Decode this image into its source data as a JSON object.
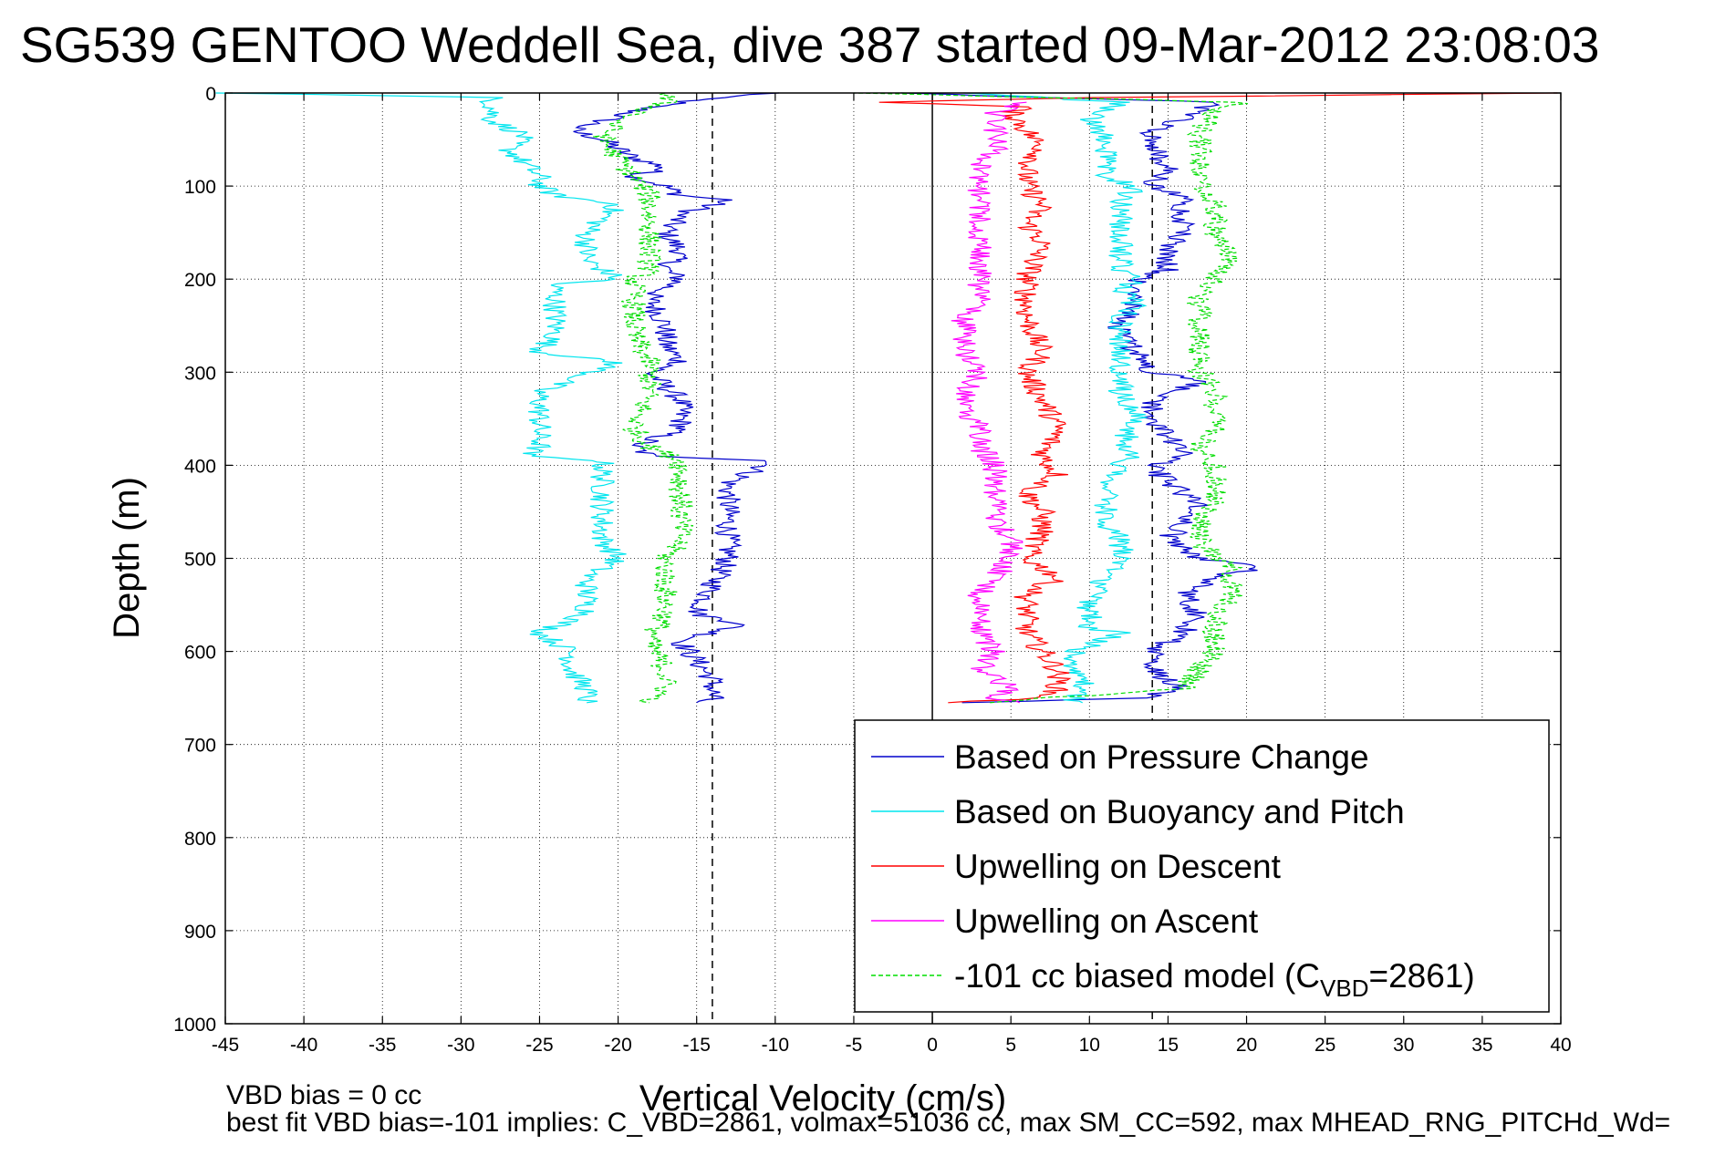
{
  "chart_data": {
    "type": "line",
    "title": "SG539 GENTOO Weddell Sea, dive 387 started 09-Mar-2012 23:08:03",
    "xlabel": "Vertical Velocity (cm/s)",
    "ylabel": "Depth (m)",
    "xlim": [
      -45,
      40
    ],
    "ylim": [
      0,
      1000
    ],
    "y_reversed": true,
    "grid": true,
    "x_ticks": [
      "-45",
      "-40",
      "-35",
      "-30",
      "-25",
      "-20",
      "-15",
      "-10",
      "-5",
      "0",
      "5",
      "10",
      "15",
      "20",
      "25",
      "30",
      "35",
      "40"
    ],
    "y_ticks": [
      "0",
      "100",
      "200",
      "300",
      "400",
      "500",
      "600",
      "700",
      "800",
      "900",
      "1000"
    ],
    "reference_lines": [
      {
        "x": 0,
        "style": "solid",
        "color": "#000000"
      },
      {
        "x": -14,
        "style": "dashed",
        "color": "#000000"
      },
      {
        "x": 14,
        "style": "dashed",
        "color": "#000000"
      }
    ],
    "legend": {
      "position": "bottom-right",
      "entries": [
        {
          "label": "Based on Pressure Change",
          "color": "#0000cc",
          "style": "solid"
        },
        {
          "label": "Based on Buoyancy and Pitch",
          "color": "#00e5ee",
          "style": "solid"
        },
        {
          "label": "Upwelling on Descent",
          "color": "#ff0000",
          "style": "solid"
        },
        {
          "label": "Upwelling on Ascent",
          "color": "#ff00ff",
          "style": "solid"
        },
        {
          "label_prefix": "-101 cc biased model (C",
          "label_sub": "VBD",
          "label_suffix": "=2861)",
          "color": "#00dd00",
          "style": "dashed"
        }
      ]
    },
    "series": [
      {
        "name": "Based on Pressure Change",
        "color": "#0000cc",
        "descent": {
          "depth": [
            0,
            5,
            15,
            30,
            40,
            50,
            70,
            80,
            90,
            100,
            110,
            115,
            130,
            150,
            170,
            190,
            200,
            220,
            250,
            270,
            290,
            300,
            330,
            360,
            380,
            390,
            395,
            420,
            450,
            480,
            500,
            530,
            560,
            570,
            590,
            610,
            630,
            650,
            655
          ],
          "velocity": [
            -10,
            -14,
            -18,
            -21,
            -23,
            -21,
            -19,
            -17,
            -19,
            -17,
            -16,
            -13,
            -16,
            -17,
            -16,
            -17,
            -16,
            -18,
            -17,
            -17,
            -16,
            -18,
            -16,
            -16,
            -19,
            -18,
            -10,
            -13,
            -13,
            -13,
            -13,
            -14,
            -15,
            -12,
            -16,
            -15,
            -14,
            -14,
            -15
          ]
        },
        "ascent": {
          "depth": [
            655,
            650,
            640,
            620,
            600,
            580,
            560,
            540,
            520,
            510,
            500,
            480,
            460,
            440,
            420,
            400,
            390,
            370,
            350,
            330,
            310,
            300,
            280,
            260,
            250,
            230,
            210,
            200,
            190,
            170,
            150,
            130,
            110,
            100,
            80,
            60,
            40,
            20,
            10,
            0
          ],
          "velocity": [
            2,
            13,
            16,
            14,
            14,
            16,
            17,
            16,
            18,
            21,
            17,
            15,
            16,
            17,
            15,
            14,
            16,
            15,
            14,
            14,
            17,
            14,
            13,
            12,
            12,
            13,
            13,
            13,
            15,
            15,
            16,
            16,
            16,
            14,
            15,
            14,
            14,
            17,
            18,
            -2
          ]
        }
      },
      {
        "name": "Based on Buoyancy and Pitch",
        "color": "#00e5ee",
        "descent": {
          "depth": [
            0,
            5,
            30,
            45,
            60,
            90,
            100,
            110,
            120,
            150,
            180,
            200,
            205,
            230,
            260,
            278,
            290,
            320,
            350,
            380,
            390,
            395,
            420,
            450,
            480,
            500,
            520,
            540,
            560,
            580,
            600,
            620,
            640,
            655
          ],
          "velocity": [
            -45,
            -28,
            -28,
            -26,
            -27,
            -25,
            -25,
            -24,
            -20,
            -22,
            -22,
            -20,
            -24,
            -24,
            -24,
            -25,
            -20,
            -25,
            -25,
            -25,
            -26,
            -21,
            -21,
            -21,
            -21,
            -20,
            -22,
            -22,
            -22,
            -25,
            -23,
            -23,
            -22,
            -22
          ]
        },
        "ascent": {
          "depth": [
            655,
            640,
            630,
            620,
            600,
            580,
            575,
            550,
            520,
            500,
            480,
            460,
            440,
            420,
            400,
            390,
            380,
            350,
            320,
            300,
            280,
            260,
            240,
            230,
            210,
            200,
            190,
            170,
            150,
            120,
            100,
            90,
            70,
            50,
            30,
            10,
            0
          ],
          "velocity": [
            9,
            9,
            10,
            9,
            9,
            12,
            10,
            10,
            11,
            12,
            12,
            11,
            11,
            11,
            12,
            13,
            12,
            13,
            12,
            12,
            12,
            12,
            12,
            13,
            12,
            13,
            12,
            12,
            12,
            12,
            13,
            11,
            11,
            11,
            10,
            12,
            2
          ]
        }
      },
      {
        "name": "Upwelling on Descent",
        "color": "#ff0000",
        "descent": {
          "depth": [
            0,
            5,
            10,
            15,
            20,
            40,
            60,
            80,
            100,
            120,
            140,
            160,
            200,
            240,
            280,
            300,
            330,
            360,
            390,
            410,
            430,
            450,
            470,
            500,
            520,
            540,
            560,
            580,
            600,
            620,
            640,
            650,
            655
          ],
          "velocity": [
            40,
            10,
            -3,
            6,
            5,
            6,
            7,
            6,
            6,
            7,
            6,
            7,
            6,
            6,
            7,
            6,
            7,
            8,
            7,
            8,
            6,
            7,
            7,
            6,
            8,
            6,
            6,
            6,
            7,
            8,
            8,
            7,
            1
          ]
        }
      },
      {
        "name": "Upwelling on Ascent",
        "color": "#ff00ff",
        "ascent": {
          "depth": [
            655,
            650,
            640,
            620,
            600,
            580,
            560,
            540,
            520,
            500,
            480,
            460,
            440,
            420,
            400,
            380,
            360,
            340,
            320,
            300,
            280,
            260,
            240,
            220,
            200,
            180,
            160,
            140,
            120,
            100,
            80,
            60,
            40,
            20,
            10
          ],
          "velocity": [
            5,
            4,
            5,
            3,
            4,
            3,
            3,
            3,
            4,
            5,
            5,
            4,
            4,
            4,
            4,
            3,
            3,
            2,
            2,
            3,
            2,
            2,
            2,
            3,
            3,
            3,
            3,
            3,
            3,
            3,
            3,
            4,
            4,
            4,
            6
          ]
        }
      },
      {
        "name": "-101 cc biased model",
        "color": "#00dd00",
        "descent": {
          "depth": [
            0,
            10,
            30,
            50,
            70,
            90,
            110,
            130,
            160,
            190,
            200,
            230,
            260,
            290,
            320,
            360,
            380,
            395,
            420,
            450,
            480,
            500,
            530,
            560,
            590,
            620,
            640,
            655
          ],
          "velocity": [
            -17,
            -17,
            -20,
            -21,
            -20,
            -19,
            -18,
            -18,
            -18,
            -18,
            -19,
            -19,
            -19,
            -18,
            -18,
            -19,
            -18,
            -16,
            -16,
            -16,
            -16,
            -17,
            -17,
            -17,
            -18,
            -17,
            -17,
            -18
          ]
        },
        "ascent": {
          "depth": [
            655,
            640,
            620,
            600,
            580,
            560,
            540,
            520,
            510,
            500,
            480,
            460,
            440,
            420,
            400,
            380,
            360,
            340,
            320,
            300,
            280,
            250,
            220,
            200,
            170,
            150,
            120,
            100,
            80,
            60,
            40,
            20,
            10,
            0
          ],
          "velocity": [
            3,
            16,
            17,
            18,
            18,
            18,
            19,
            19,
            19,
            18,
            17,
            17,
            18,
            18,
            18,
            17,
            18,
            18,
            18,
            17,
            17,
            17,
            17,
            18,
            19,
            18,
            18,
            17,
            17,
            17,
            17,
            18,
            20,
            -5
          ]
        }
      }
    ],
    "footnotes": [
      "VBD bias = 0 cc",
      "best fit VBD bias=-101 implies: C_VBD=2861, volmax=51036 cc, max SM_CC=592, max MHEAD_RNG_PITCHd_Wd="
    ]
  }
}
